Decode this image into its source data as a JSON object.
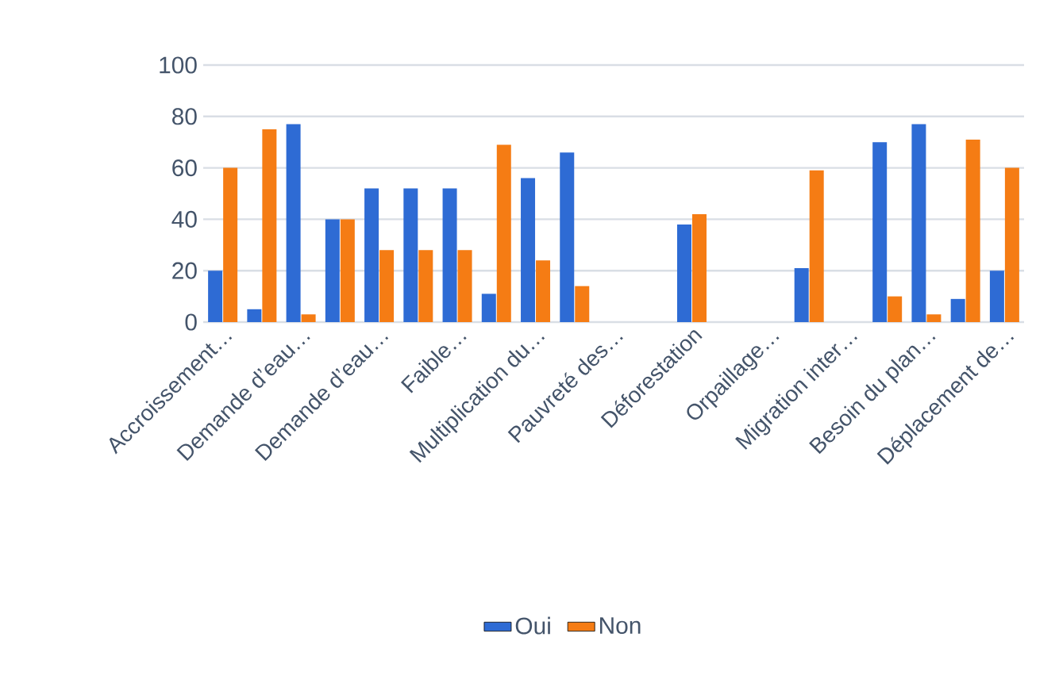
{
  "chart_data": {
    "type": "bar",
    "categories": [
      "Accroissement…",
      null,
      "Demande d’eau…",
      null,
      "Demande d’eau…",
      null,
      "Faible…",
      null,
      "Multiplication du…",
      null,
      "Pauvreté des…",
      null,
      "Déforestation",
      null,
      "Orpaillage…",
      null,
      "Migration inter…",
      null,
      "Besoin du plan…",
      null,
      "Déplacement de…"
    ],
    "series": [
      {
        "name": "Oui",
        "color": "#2e6bd4",
        "values": [
          20,
          5,
          77,
          40,
          52,
          52,
          52,
          11,
          56,
          66,
          null,
          null,
          38,
          null,
          null,
          21,
          null,
          70,
          77,
          9,
          20
        ]
      },
      {
        "name": "Non",
        "color": "#f57c14",
        "values": [
          60,
          75,
          3,
          40,
          28,
          28,
          28,
          69,
          24,
          14,
          null,
          null,
          42,
          null,
          null,
          59,
          null,
          10,
          3,
          71,
          60
        ]
      }
    ],
    "ylim": [
      0,
      100
    ],
    "yticks": [
      0,
      20,
      40,
      60,
      80,
      100
    ],
    "grid": "y",
    "legend": "bottom"
  }
}
